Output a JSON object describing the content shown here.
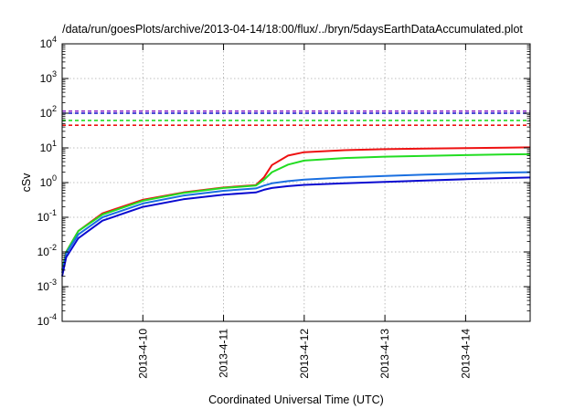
{
  "chart_data": {
    "type": "line",
    "title": "/data/run/goesPlots/archive/2013-04-14/18:00/flux/../bryn/5daysEarthDataAccumulated.plot",
    "xlabel": "Coordinated Universal Time (UTC)",
    "ylabel": "cSv",
    "yscale": "log",
    "ylim": [
      0.0001,
      10000
    ],
    "xlim": [
      0,
      5.8
    ],
    "x_ticks": [
      {
        "x": 1,
        "label": "2013-4-10"
      },
      {
        "x": 2,
        "label": "2013-4-11"
      },
      {
        "x": 3,
        "label": "2013-4-12"
      },
      {
        "x": 4,
        "label": "2013-4-13"
      },
      {
        "x": 5,
        "label": "2013-4-14"
      }
    ],
    "y_ticks": [
      {
        "value": 0.0001,
        "base": "10",
        "exp": "-4"
      },
      {
        "value": 0.001,
        "base": "10",
        "exp": "-3"
      },
      {
        "value": 0.01,
        "base": "10",
        "exp": "-2"
      },
      {
        "value": 0.1,
        "base": "10",
        "exp": "-1"
      },
      {
        "value": 1,
        "base": "10",
        "exp": "0"
      },
      {
        "value": 10,
        "base": "10",
        "exp": "1"
      },
      {
        "value": 100,
        "base": "10",
        "exp": "2"
      },
      {
        "value": 1000,
        "base": "10",
        "exp": "3"
      },
      {
        "value": 10000,
        "base": "10",
        "exp": "4"
      }
    ],
    "grid": true,
    "thresholds": [
      {
        "value": 115,
        "color": "#8e2cc8"
      },
      {
        "value": 100,
        "color": "#1010c8"
      },
      {
        "value": 62,
        "color": "#22dd22"
      },
      {
        "value": 45,
        "color": "#ee1111"
      }
    ],
    "series": [
      {
        "color": "#ee1111",
        "x": [
          0,
          0.05,
          0.2,
          0.5,
          1.0,
          1.5,
          2.0,
          2.4,
          2.5,
          2.6,
          2.8,
          3.0,
          3.5,
          4.0,
          4.5,
          5.0,
          5.5,
          5.8
        ],
        "y": [
          0.003,
          0.01,
          0.04,
          0.13,
          0.32,
          0.52,
          0.72,
          0.85,
          1.4,
          3.2,
          6.0,
          7.5,
          8.6,
          9.2,
          9.6,
          9.9,
          10.2,
          10.4
        ]
      },
      {
        "color": "#22dd22",
        "x": [
          0,
          0.05,
          0.2,
          0.5,
          1.0,
          1.5,
          2.0,
          2.4,
          2.5,
          2.6,
          2.8,
          3.0,
          3.5,
          4.0,
          4.5,
          5.0,
          5.5,
          5.8
        ],
        "y": [
          0.003,
          0.01,
          0.04,
          0.12,
          0.3,
          0.5,
          0.7,
          0.82,
          1.2,
          2.0,
          3.3,
          4.3,
          5.1,
          5.6,
          5.9,
          6.2,
          6.5,
          6.6
        ]
      },
      {
        "color": "#1a6fe0",
        "x": [
          0,
          0.05,
          0.2,
          0.5,
          1.0,
          1.5,
          2.0,
          2.4,
          2.5,
          2.6,
          2.8,
          3.0,
          3.5,
          4.0,
          4.5,
          5.0,
          5.5,
          5.8
        ],
        "y": [
          0.0025,
          0.009,
          0.032,
          0.1,
          0.25,
          0.42,
          0.58,
          0.68,
          0.82,
          0.95,
          1.1,
          1.22,
          1.4,
          1.55,
          1.7,
          1.82,
          1.95,
          2.0
        ]
      },
      {
        "color": "#0a0ad0",
        "x": [
          0,
          0.05,
          0.2,
          0.5,
          1.0,
          1.5,
          2.0,
          2.4,
          2.5,
          2.6,
          2.8,
          3.0,
          3.5,
          4.0,
          4.5,
          5.0,
          5.5,
          5.8
        ],
        "y": [
          0.002,
          0.007,
          0.025,
          0.08,
          0.2,
          0.33,
          0.45,
          0.52,
          0.62,
          0.7,
          0.79,
          0.86,
          0.95,
          1.05,
          1.15,
          1.25,
          1.35,
          1.4
        ]
      }
    ]
  }
}
